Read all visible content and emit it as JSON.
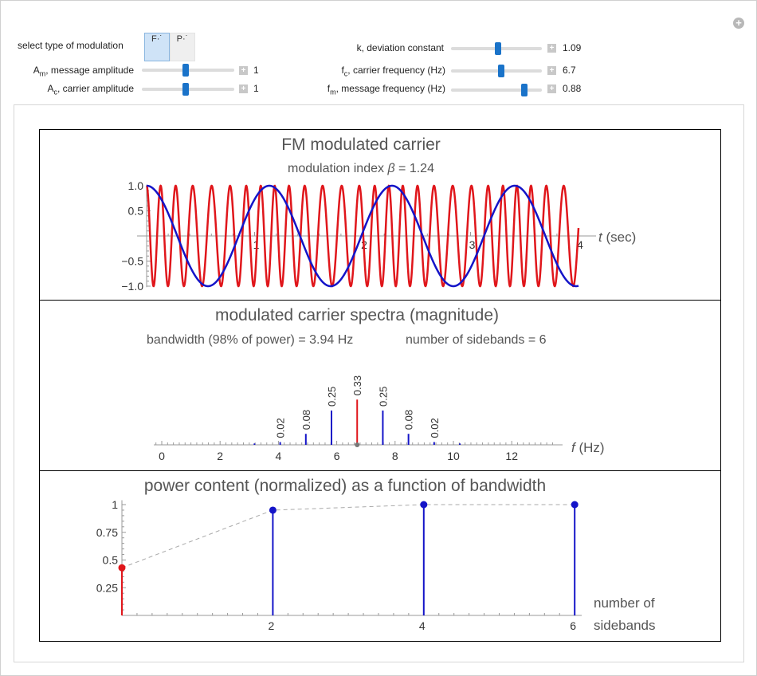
{
  "controls": {
    "modulation_label": "select type of modulation",
    "modulation_options": [
      "FM",
      "PM"
    ],
    "modulation_buttons": [
      "F·˙",
      "P·˙"
    ],
    "am": {
      "label_main": "A",
      "label_sub": "m",
      "label_rest": ", message amplitude",
      "value": "1",
      "fraction": 0.47
    },
    "ac": {
      "label_main": "A",
      "label_sub": "c",
      "label_rest": ", carrier amplitude",
      "value": "1",
      "fraction": 0.47
    },
    "k": {
      "label": "k, deviation constant",
      "value": "1.09",
      "fraction": 0.52
    },
    "fc": {
      "label_main": "f",
      "label_sub": "c",
      "label_rest": ", carrier frequency (Hz)",
      "value": "6.7",
      "fraction": 0.55
    },
    "fm": {
      "label_main": "f",
      "label_sub": "m",
      "label_rest": ", message frequency (Hz)",
      "value": "0.88",
      "fraction": 0.81
    }
  },
  "plot1": {
    "title": "FM modulated carrier",
    "subtitle_prefix": "modulation index ",
    "beta_symbol": "β",
    "subtitle_suffix": " = 1.24",
    "x_label_var": "t",
    "x_label_unit": " (sec)",
    "x_ticks": [
      "1",
      "2",
      "3",
      "4"
    ],
    "y_ticks": [
      "1.0",
      "0.5",
      "−0.5",
      "−1.0"
    ],
    "carrier_color": "#e0161b",
    "message_color": "#1414c8"
  },
  "plot2": {
    "title": "modulated carrier spectra (magnitude)",
    "bandwidth_text": "bandwidth (98% of power) = 3.94 Hz",
    "sidebands_text": "number of sidebands = 6",
    "x_label_var": "f",
    "x_label_unit": " (Hz)",
    "x_ticks": [
      "0",
      "2",
      "4",
      "6",
      "8",
      "10",
      "12"
    ]
  },
  "plot3": {
    "title": "power content (normalized) as a function of bandwidth",
    "x_label_line1": "number of",
    "x_label_line2": "sidebands",
    "x_ticks": [
      "2",
      "4",
      "6"
    ],
    "y_ticks": [
      "1",
      "0.75",
      "0.5",
      "0.25"
    ]
  },
  "chart_data": [
    {
      "type": "line",
      "title": "FM modulated carrier",
      "subtitle": "modulation index β = 1.24",
      "xlabel": "t (sec)",
      "xlim": [
        0,
        4
      ],
      "ylim": [
        -1,
        1
      ],
      "carrier_frequency_hz": 6.7,
      "message_frequency_hz": 0.88,
      "modulation_index": 1.24,
      "series": [
        {
          "name": "",
          "color": "#e0161b",
          "kind": "fm-carrier"
        },
        {
          "name": "",
          "color": "#1414c8",
          "kind": "message"
        }
      ]
    },
    {
      "type": "bar",
      "title": "modulated carrier spectra (magnitude)",
      "xlabel": "f (Hz)",
      "xlim": [
        0,
        13.5
      ],
      "x": [
        3.18,
        4.06,
        4.94,
        5.82,
        6.7,
        7.58,
        8.46,
        9.34,
        10.22
      ],
      "values": [
        0.01,
        0.02,
        0.08,
        0.25,
        0.33,
        0.25,
        0.08,
        0.02,
        0.01
      ],
      "labels": [
        "",
        "0.02",
        "0.08",
        "0.25",
        "0.33",
        "0.25",
        "0.08",
        "0.02",
        ""
      ],
      "colors": [
        "#1414c8",
        "#1414c8",
        "#1414c8",
        "#1414c8",
        "#e0161b",
        "#1414c8",
        "#1414c8",
        "#1414c8",
        "#1414c8"
      ]
    },
    {
      "type": "scatter",
      "title": "power content (normalized) as a function of bandwidth",
      "xlabel": "number of sidebands",
      "x": [
        0,
        2,
        4,
        6
      ],
      "values": [
        0.43,
        0.95,
        1.0,
        1.0
      ],
      "colors": [
        "#e0161b",
        "#1414c8",
        "#1414c8",
        "#1414c8"
      ],
      "ylim": [
        0,
        1
      ]
    }
  ]
}
